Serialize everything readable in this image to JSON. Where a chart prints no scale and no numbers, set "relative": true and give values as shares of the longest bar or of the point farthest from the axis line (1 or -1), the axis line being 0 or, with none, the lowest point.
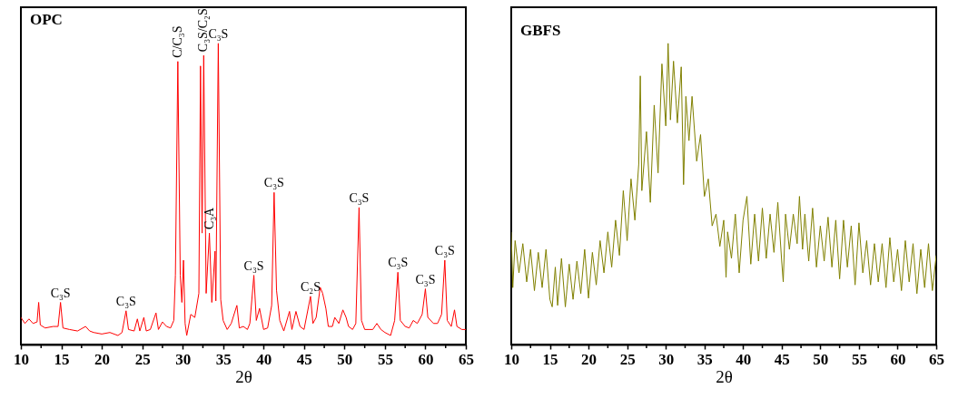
{
  "chart_data": [
    {
      "type": "line",
      "title": "OPC",
      "xlabel": "2θ",
      "relative": true,
      "tick_labels": "x",
      "xlim": [
        10,
        65
      ],
      "xticks": [
        10,
        {
          "value": 12.5,
          "label": null
        },
        15,
        {
          "value": 17.5,
          "label": null
        },
        20,
        {
          "value": 22.5,
          "label": null
        },
        25,
        {
          "value": 27.5,
          "label": null
        },
        30,
        {
          "value": 32.5,
          "label": null
        },
        35,
        {
          "value": 37.5,
          "label": null
        },
        40,
        {
          "value": 42.5,
          "label": null
        },
        45,
        {
          "value": 47.5,
          "label": null
        },
        50,
        {
          "value": 52.5,
          "label": null
        },
        55,
        {
          "value": 57.5,
          "label": null
        },
        60,
        {
          "value": 62.5,
          "label": null
        },
        65
      ],
      "series": [
        {
          "color": "#ff0000",
          "x": [
            10.0,
            10.5,
            11.0,
            11.5,
            12.0,
            12.2,
            12.4,
            13,
            14,
            14.6,
            14.9,
            15.2,
            16,
            17,
            18,
            18.5,
            19,
            20,
            21,
            22,
            22.5,
            23.0,
            23.3,
            24,
            24.4,
            24.7,
            25.2,
            25.5,
            26,
            26.7,
            27,
            27.5,
            28,
            28.5,
            28.9,
            29.1,
            29.4,
            29.7,
            29.9,
            30.1,
            30.3,
            30.5,
            31,
            31.5,
            32.0,
            32.2,
            32.4,
            32.6,
            32.9,
            33.3,
            33.6,
            34.0,
            34.1,
            34.4,
            34.7,
            35,
            35.5,
            36,
            36.7,
            37,
            37.5,
            38,
            38.3,
            38.8,
            39.1,
            39.5,
            40,
            40.5,
            41.0,
            41.3,
            41.6,
            42,
            42.5,
            43.2,
            43.5,
            44,
            44.5,
            45,
            45.8,
            46.1,
            46.5,
            47.0,
            47.3,
            47.7,
            48,
            48.5,
            48.8,
            49.3,
            49.8,
            50.2,
            50.5,
            51,
            51.4,
            51.8,
            52.1,
            52.5,
            53,
            53.5,
            54,
            54.5,
            55,
            55.7,
            56.2,
            56.6,
            56.9,
            57.5,
            58,
            58.5,
            59,
            59.6,
            60.0,
            60.3,
            61,
            61.5,
            62,
            62.4,
            62.7,
            63.2,
            63.6,
            63.9,
            64.5,
            65
          ],
          "values": [
            0.09,
            0.07,
            0.085,
            0.07,
            0.075,
            0.14,
            0.065,
            0.055,
            0.06,
            0.06,
            0.14,
            0.055,
            0.05,
            0.045,
            0.06,
            0.045,
            0.04,
            0.035,
            0.04,
            0.03,
            0.04,
            0.112,
            0.05,
            0.045,
            0.085,
            0.045,
            0.09,
            0.045,
            0.05,
            0.105,
            0.05,
            0.075,
            0.06,
            0.055,
            0.08,
            0.23,
            0.94,
            0.23,
            0.14,
            0.28,
            0.07,
            0.03,
            0.1,
            0.09,
            0.17,
            0.925,
            0.37,
            0.96,
            0.17,
            0.37,
            0.14,
            0.31,
            0.145,
            1.0,
            0.15,
            0.08,
            0.05,
            0.07,
            0.13,
            0.055,
            0.06,
            0.05,
            0.07,
            0.23,
            0.08,
            0.12,
            0.05,
            0.055,
            0.13,
            0.505,
            0.18,
            0.08,
            0.045,
            0.11,
            0.05,
            0.11,
            0.06,
            0.05,
            0.16,
            0.07,
            0.09,
            0.19,
            0.17,
            0.12,
            0.06,
            0.06,
            0.09,
            0.07,
            0.115,
            0.09,
            0.06,
            0.05,
            0.07,
            0.455,
            0.08,
            0.05,
            0.05,
            0.05,
            0.07,
            0.05,
            0.04,
            0.03,
            0.08,
            0.24,
            0.08,
            0.06,
            0.055,
            0.08,
            0.07,
            0.1,
            0.185,
            0.09,
            0.07,
            0.07,
            0.1,
            0.28,
            0.08,
            0.06,
            0.115,
            0.06,
            0.05,
            0.05
          ]
        }
      ],
      "annotations": [
        {
          "text": "C₃S",
          "x": 14.9,
          "y": 0.14
        },
        {
          "text": "C₃S",
          "x": 23.0,
          "y": 0.112
        },
        {
          "text": "C/C₃S",
          "x": 29.4,
          "y": 0.94
        },
        {
          "text": "C₃S/C₂S",
          "x": 32.6,
          "y": 0.96
        },
        {
          "text": "C₃A",
          "x": 33.3,
          "y": 0.37
        },
        {
          "text": "C₃S",
          "x": 34.4,
          "y": 1.0
        },
        {
          "text": "C₃S",
          "x": 38.8,
          "y": 0.23
        },
        {
          "text": "C₃S",
          "x": 41.3,
          "y": 0.505
        },
        {
          "text": "C₂S",
          "x": 45.8,
          "y": 0.16
        },
        {
          "text": "C₃S",
          "x": 51.8,
          "y": 0.455
        },
        {
          "text": "C₃S",
          "x": 56.6,
          "y": 0.24
        },
        {
          "text": "C₃S",
          "x": 60.0,
          "y": 0.185
        },
        {
          "text": "C₃S",
          "x": 62.4,
          "y": 0.28
        }
      ]
    },
    {
      "type": "line",
      "title": "GBFS",
      "xlabel": "2θ",
      "relative": true,
      "tick_labels": "x",
      "xlim": [
        10,
        65
      ],
      "xticks": [
        10,
        {
          "value": 12.5,
          "label": null
        },
        15,
        {
          "value": 17.5,
          "label": null
        },
        20,
        {
          "value": 22.5,
          "label": null
        },
        25,
        {
          "value": 27.5,
          "label": null
        },
        30,
        {
          "value": 32.5,
          "label": null
        },
        35,
        {
          "value": 37.5,
          "label": null
        },
        40,
        {
          "value": 42.5,
          "label": null
        },
        45,
        {
          "value": 47.5,
          "label": null
        },
        50,
        {
          "value": 52.5,
          "label": null
        },
        55,
        {
          "value": 57.5,
          "label": null
        },
        60,
        {
          "value": 62.5,
          "label": null
        },
        65
      ],
      "series": [
        {
          "color": "#808000",
          "x": [
            10.0,
            10.2,
            10.5,
            11,
            11.5,
            12,
            12.5,
            13,
            13.5,
            14,
            14.5,
            15,
            15.3,
            15.7,
            16,
            16.5,
            17,
            17.5,
            18,
            18.5,
            19,
            19.5,
            20,
            20.5,
            21,
            21.5,
            22,
            22.5,
            23,
            23.5,
            24,
            24.5,
            25,
            25.5,
            26,
            26.5,
            26.7,
            26.9,
            27.5,
            28,
            28.5,
            29,
            29.5,
            30,
            30.3,
            30.6,
            31,
            31.5,
            32,
            32.3,
            32.6,
            33,
            33.4,
            34,
            34.5,
            35,
            35.5,
            36,
            36.5,
            37,
            37.5,
            37.8,
            38,
            38.5,
            39,
            39.5,
            40,
            40.5,
            41,
            41.5,
            42,
            42.5,
            43,
            43.5,
            44,
            44.5,
            45,
            45.2,
            45.5,
            46,
            46.5,
            47,
            47.3,
            47.7,
            48,
            48.5,
            49,
            49.5,
            50,
            50.5,
            51,
            51.5,
            52,
            52.5,
            53,
            53.5,
            54,
            54.5,
            55,
            55.5,
            56,
            56.5,
            57,
            57.5,
            58,
            58.5,
            59,
            59.5,
            60,
            60.5,
            61,
            61.5,
            62,
            62.5,
            63,
            63.5,
            64,
            64.5,
            65
          ],
          "values": [
            0.374,
            0.189,
            0.345,
            0.238,
            0.335,
            0.208,
            0.316,
            0.179,
            0.306,
            0.189,
            0.316,
            0.15,
            0.125,
            0.257,
            0.13,
            0.286,
            0.125,
            0.267,
            0.15,
            0.277,
            0.169,
            0.316,
            0.154,
            0.306,
            0.198,
            0.345,
            0.238,
            0.374,
            0.257,
            0.413,
            0.296,
            0.511,
            0.345,
            0.55,
            0.413,
            0.599,
            0.892,
            0.511,
            0.707,
            0.472,
            0.795,
            0.57,
            0.932,
            0.726,
            1.0,
            0.746,
            0.941,
            0.736,
            0.922,
            0.531,
            0.824,
            0.677,
            0.824,
            0.609,
            0.697,
            0.492,
            0.55,
            0.394,
            0.433,
            0.326,
            0.413,
            0.223,
            0.374,
            0.286,
            0.433,
            0.238,
            0.413,
            0.492,
            0.267,
            0.433,
            0.277,
            0.453,
            0.286,
            0.433,
            0.306,
            0.472,
            0.277,
            0.208,
            0.433,
            0.316,
            0.433,
            0.335,
            0.492,
            0.316,
            0.433,
            0.277,
            0.453,
            0.257,
            0.394,
            0.277,
            0.423,
            0.257,
            0.413,
            0.218,
            0.413,
            0.257,
            0.394,
            0.198,
            0.404,
            0.238,
            0.345,
            0.198,
            0.335,
            0.208,
            0.335,
            0.189,
            0.355,
            0.208,
            0.316,
            0.179,
            0.345,
            0.208,
            0.335,
            0.169,
            0.316,
            0.189,
            0.335,
            0.179,
            0.296
          ]
        }
      ]
    }
  ]
}
